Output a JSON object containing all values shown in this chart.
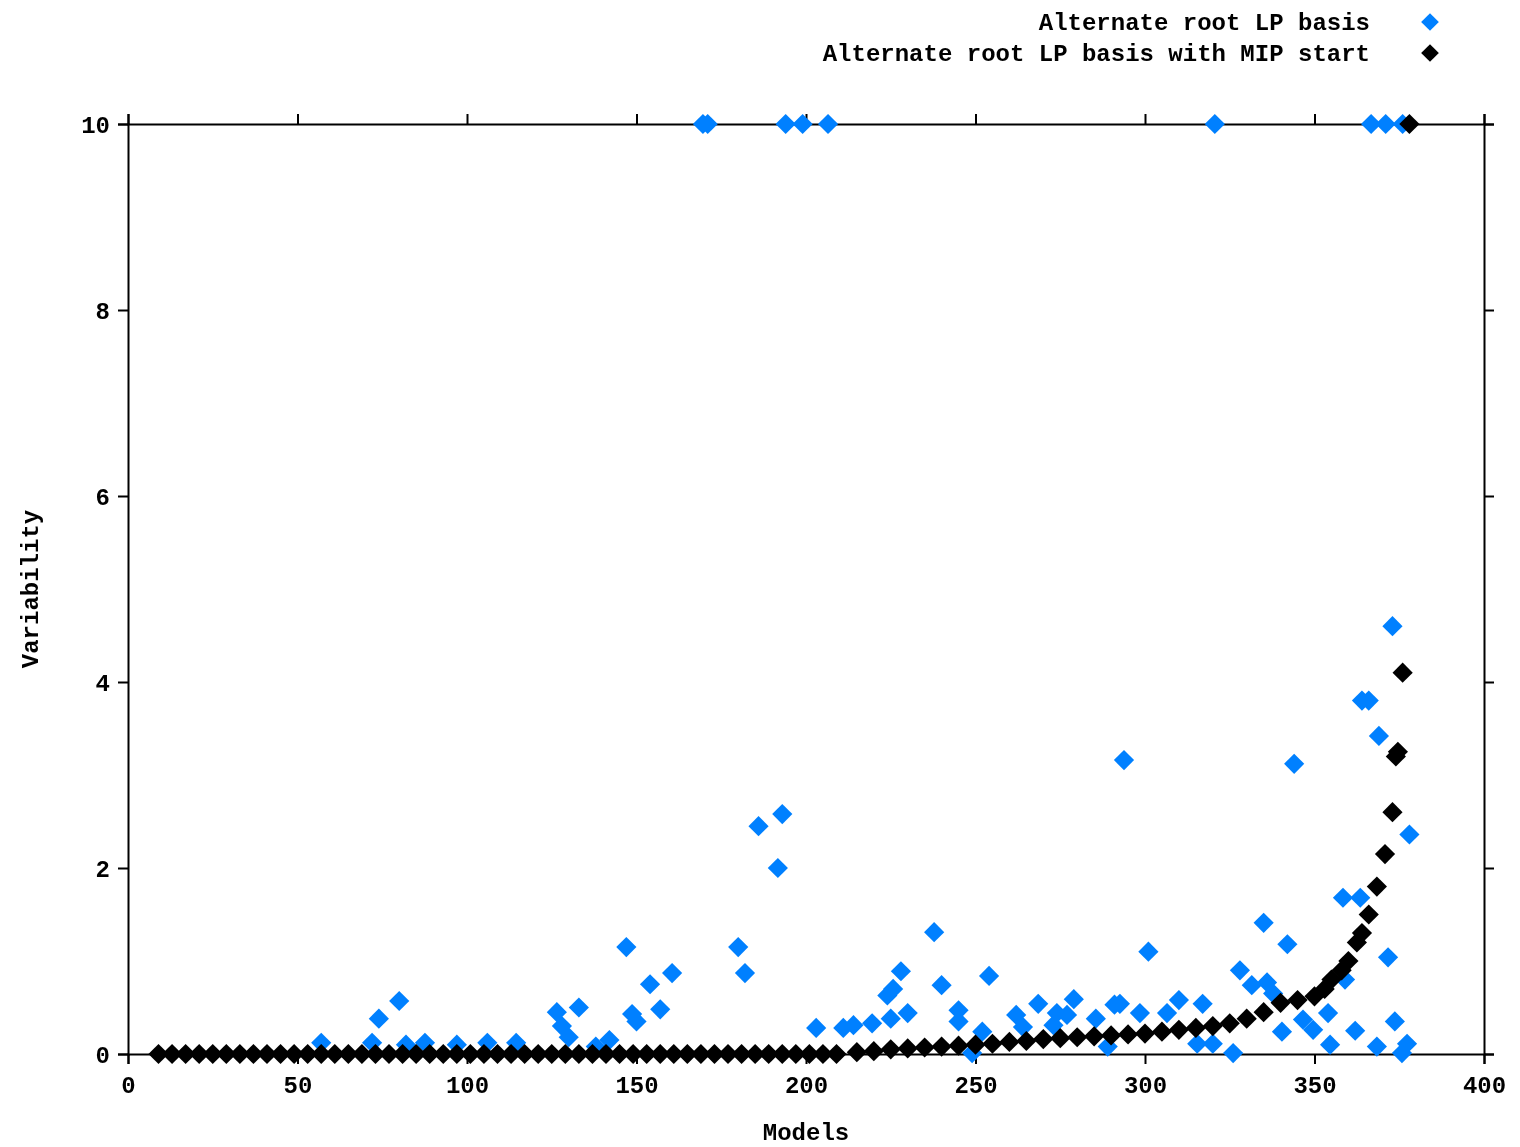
{
  "chart_data": {
    "type": "scatter",
    "xlabel": "Models",
    "ylabel": "Variability",
    "xlim": [
      0,
      400
    ],
    "ylim": [
      0,
      10
    ],
    "xticks": [
      0,
      50,
      100,
      150,
      200,
      250,
      300,
      350,
      400
    ],
    "yticks": [
      0,
      2,
      4,
      6,
      8,
      10
    ],
    "grid": false,
    "legend": "top right",
    "marker": "diamond",
    "series": [
      {
        "name": "Alternate root LP basis",
        "color": "#0080ff",
        "x": [
          57,
          72,
          74,
          80,
          82,
          87.6,
          97,
          106,
          114.5,
          126.5,
          128,
          130,
          133,
          138,
          142,
          147,
          148.7,
          150,
          154,
          157,
          160.5,
          169.6,
          171,
          180,
          182,
          186,
          191.7,
          193,
          194,
          199,
          203,
          206.5,
          211,
          214,
          219.5,
          224,
          225,
          225.7,
          228,
          230,
          237.8,
          240,
          245,
          245,
          249,
          252,
          254,
          262,
          264,
          268.5,
          273,
          274,
          277,
          279,
          285.5,
          289,
          291,
          292.6,
          293.8,
          298.5,
          301,
          306.5,
          310,
          315.4,
          317,
          320,
          320.6,
          326,
          328,
          331.5,
          335,
          336,
          337.8,
          340.4,
          342,
          344,
          346.6,
          349.6,
          354,
          354.6,
          358.4,
          359,
          362,
          363.5,
          364,
          366,
          366.7,
          368.4,
          369,
          371,
          371.7,
          373,
          373.7,
          375.8,
          376,
          377.3,
          378
        ],
        "values": [
          0.12,
          0.12,
          0.38,
          0.57,
          0.1,
          0.12,
          0.1,
          0.12,
          0.12,
          0.45,
          0.3,
          0.18,
          0.5,
          0.08,
          0.15,
          1.15,
          0.43,
          0.35,
          0.75,
          0.48,
          0.87,
          10,
          10,
          1.15,
          0.87,
          2.45,
          2.0,
          2.58,
          10,
          10,
          0.28,
          10,
          0.28,
          0.31,
          0.33,
          0.63,
          0.38,
          0.7,
          0.89,
          0.44,
          1.31,
          0.74,
          0.47,
          0.35,
          0.01,
          0.24,
          0.84,
          0.42,
          0.29,
          0.54,
          0.31,
          0.44,
          0.42,
          0.59,
          0.38,
          0.08,
          0.53,
          0.54,
          3.16,
          0.44,
          1.1,
          0.44,
          0.58,
          0.11,
          0.54,
          0.11,
          10,
          0.01,
          0.9,
          0.74,
          1.41,
          0.77,
          0.65,
          0.24,
          1.18,
          3.12,
          0.37,
          0.26,
          0.44,
          0.1,
          1.68,
          0.8,
          0.25,
          1.68,
          3.8,
          3.8,
          10,
          0.08,
          3.42,
          10,
          1.04,
          4.6,
          0.35,
          0.01,
          10,
          0.11,
          2.36
        ]
      },
      {
        "name": "Alternate root LP basis with MIP start",
        "color": "#000000",
        "x": [
          9,
          13,
          17,
          21,
          25,
          29,
          33,
          37,
          41,
          45,
          49,
          53,
          57,
          61,
          65,
          69,
          73,
          77,
          81,
          85,
          89,
          93,
          97,
          101,
          105,
          109,
          113,
          117,
          121,
          125,
          129,
          133,
          137,
          141,
          145,
          149,
          153,
          157,
          161,
          165,
          169,
          173,
          177,
          181,
          185,
          189,
          193,
          197,
          201,
          205,
          209,
          215,
          220,
          225,
          230,
          235,
          240,
          245,
          250,
          255,
          260,
          265,
          270,
          275,
          280,
          285,
          290,
          295,
          300,
          305,
          310,
          315,
          320,
          325,
          330,
          335,
          340,
          345,
          350,
          353,
          355,
          358,
          360,
          362.5,
          364,
          366,
          368.4,
          370.8,
          373,
          374,
          374.6,
          376,
          378
        ],
        "values": [
          0,
          0,
          0,
          0,
          0,
          0,
          0,
          0,
          0,
          0,
          0,
          0,
          0,
          0,
          0,
          0,
          0,
          0,
          0,
          0,
          0,
          0,
          0,
          0,
          0,
          0,
          0,
          0,
          0,
          0,
          0,
          0,
          0,
          0,
          0,
          0,
          0,
          0,
          0,
          0,
          0,
          0,
          0,
          0,
          0,
          0,
          0,
          0,
          0,
          0,
          0,
          0.02,
          0.03,
          0.05,
          0.06,
          0.07,
          0.08,
          0.09,
          0.1,
          0.11,
          0.13,
          0.14,
          0.16,
          0.17,
          0.18,
          0.19,
          0.2,
          0.21,
          0.22,
          0.24,
          0.26,
          0.28,
          0.3,
          0.33,
          0.38,
          0.45,
          0.55,
          0.58,
          0.62,
          0.7,
          0.8,
          0.9,
          1.0,
          1.2,
          1.3,
          1.5,
          1.8,
          2.15,
          2.6,
          3.2,
          3.25,
          4.1,
          10
        ]
      }
    ]
  }
}
